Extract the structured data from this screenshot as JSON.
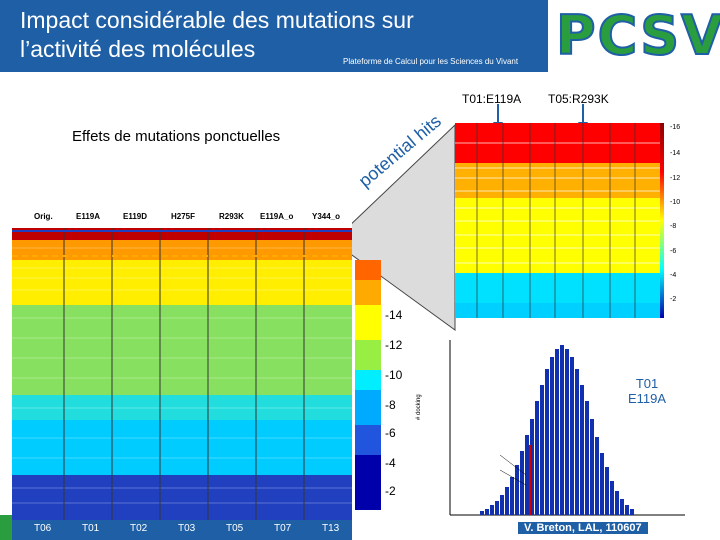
{
  "header": {
    "title_line1": "Impact considérable des mutations sur",
    "title_line2": "l’activité des molécules",
    "subtitle": "Plateforme de Calcul pour les Sciences du Vivant",
    "logo": "PCSV"
  },
  "top_labels": {
    "t01": "T01:E119A",
    "t05": "T05:R293K"
  },
  "effects_label": "Effets de mutations ponctuelles",
  "rotated_text": "potential hits",
  "main_heatmap": {
    "columns": [
      "Orig.",
      "E119A",
      "E119D",
      "H275F",
      "R293K",
      "E119A_o",
      "Y344_o"
    ]
  },
  "colorbar_ticks": [
    "-14",
    "-12",
    "-10",
    "-8",
    "-6",
    "-4",
    "-2"
  ],
  "right_ticks": [
    "-16",
    "-14",
    "-12",
    "-10",
    "-8",
    "-6",
    "-4",
    "-2"
  ],
  "x_axis": [
    "T06",
    "T01",
    "T02",
    "T03",
    "T05",
    "T07",
    "T13"
  ],
  "histogram_label": {
    "line1": "T01",
    "line2": "E119A"
  },
  "histogram_axis_label": "# docking",
  "footer": "V. Breton, LAL, 110607",
  "colors": {
    "header": "#1f5fa6",
    "accent": "#2a9d3e"
  }
}
